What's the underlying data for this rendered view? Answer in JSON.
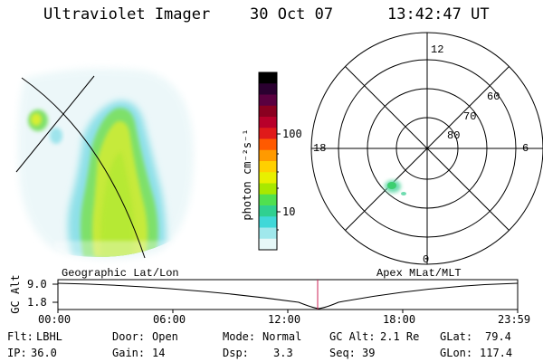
{
  "header": {
    "instrument": "Ultraviolet Imager",
    "date": "30 Oct 07",
    "time": "13:42:47 UT"
  },
  "geo_panel": {
    "caption": "Geographic Lat/Lon"
  },
  "colorbar": {
    "unit_label": "photon cm⁻²s⁻¹",
    "tick_labels": [
      "100",
      "10"
    ],
    "colors": [
      "#000000",
      "#2a0030",
      "#5a0040",
      "#8a0020",
      "#b8002a",
      "#e01a1a",
      "#ff5a00",
      "#ff9a00",
      "#ffd000",
      "#e8f000",
      "#a8e800",
      "#50e050",
      "#30d090",
      "#40d8d8",
      "#a0e8ec",
      "#e6f8f8"
    ]
  },
  "polar_panel": {
    "caption": "Apex MLat/MLT",
    "mlt_labels": {
      "top": "12",
      "left": "18",
      "right": "6",
      "bottom": "0"
    },
    "lat_labels": [
      "60",
      "70",
      "80"
    ]
  },
  "altitude_plot": {
    "ylabel": "GC Alt",
    "yticks": [
      "9.0",
      "1.8"
    ],
    "xticks": [
      "00:00",
      "06:00",
      "12:00",
      "18:00",
      "23:59"
    ],
    "marker_color": "#cc2255"
  },
  "status": {
    "filter_label": "Flt:",
    "filter_value": "LBHL",
    "ip_label": "IP:",
    "ip_value": "36.0",
    "door_label": "Door:",
    "door_value": "Open",
    "gain_label": "Gain:",
    "gain_value": "14",
    "mode_label": "Mode:",
    "mode_value": "Normal",
    "dsp_label": "Dsp:",
    "dsp_value": "3.3",
    "gcalt_label": "GC Alt:",
    "gcalt_value": "2.1 Re",
    "seq_label": "Seq:",
    "seq_value": "39",
    "glat_label": "GLat:",
    "glat_value": "79.4",
    "glon_label": "GLon:",
    "glon_value": "117.4"
  }
}
